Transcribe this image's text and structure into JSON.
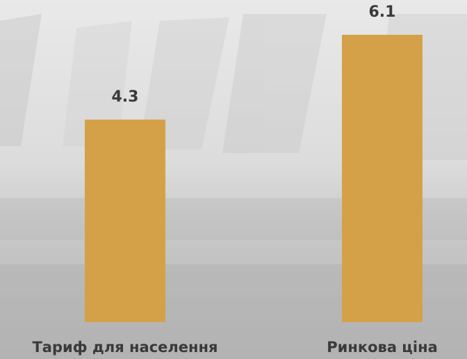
{
  "chart_data": {
    "type": "bar",
    "categories": [
      "Тариф для населення",
      "Ринкова ціна"
    ],
    "values": [
      4.3,
      6.1
    ],
    "color": "#d4a148"
  }
}
